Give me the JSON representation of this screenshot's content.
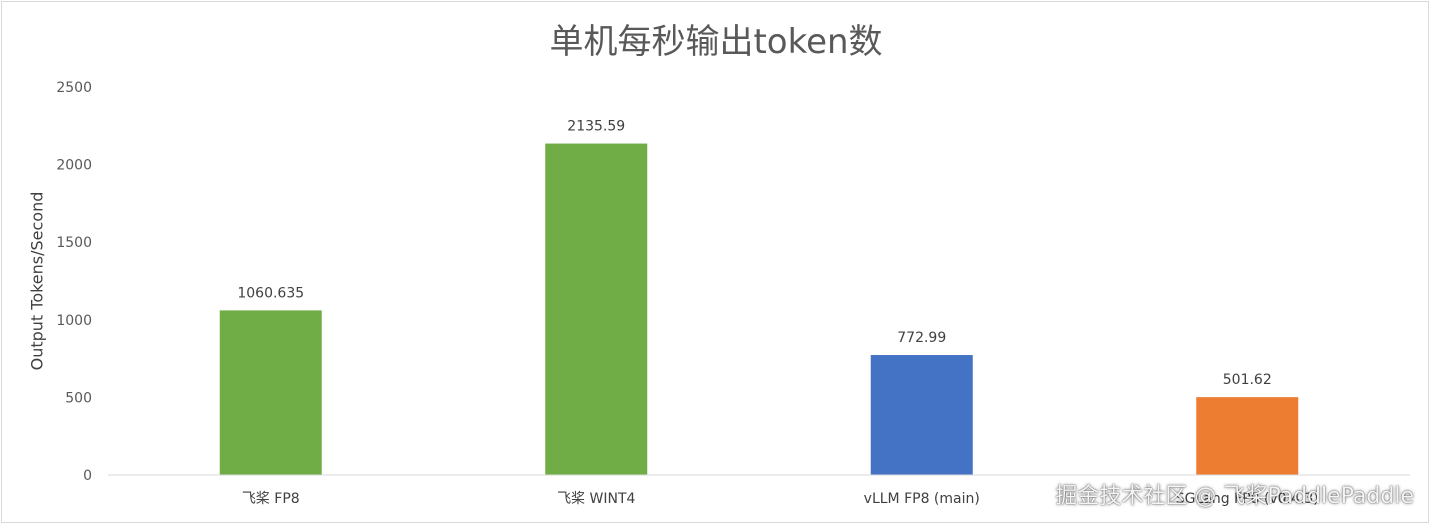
{
  "chart_data": {
    "type": "bar",
    "title": "单机每秒输出token数",
    "xlabel": "",
    "ylabel": "Output Tokens/Second",
    "ylim": [
      0,
      2500
    ],
    "yticks": [
      0,
      500,
      1000,
      1500,
      2000,
      2500
    ],
    "grid": false,
    "legend": "none",
    "categories": [
      "飞桨 FP8",
      "飞桨 WINT4",
      "vLLM FP8 (main)",
      "SGLang FP8 (v0.4.3)"
    ],
    "values": [
      1060.635,
      2135.59,
      772.99,
      501.62
    ],
    "data_labels": [
      "1060.635",
      "2135.59",
      "772.99",
      "501.62"
    ],
    "colors": [
      "#70ad47",
      "#70ad47",
      "#4472c4",
      "#ed7d31"
    ]
  },
  "watermark": "掘金技术社区 @ 飞桨PaddlePaddle"
}
